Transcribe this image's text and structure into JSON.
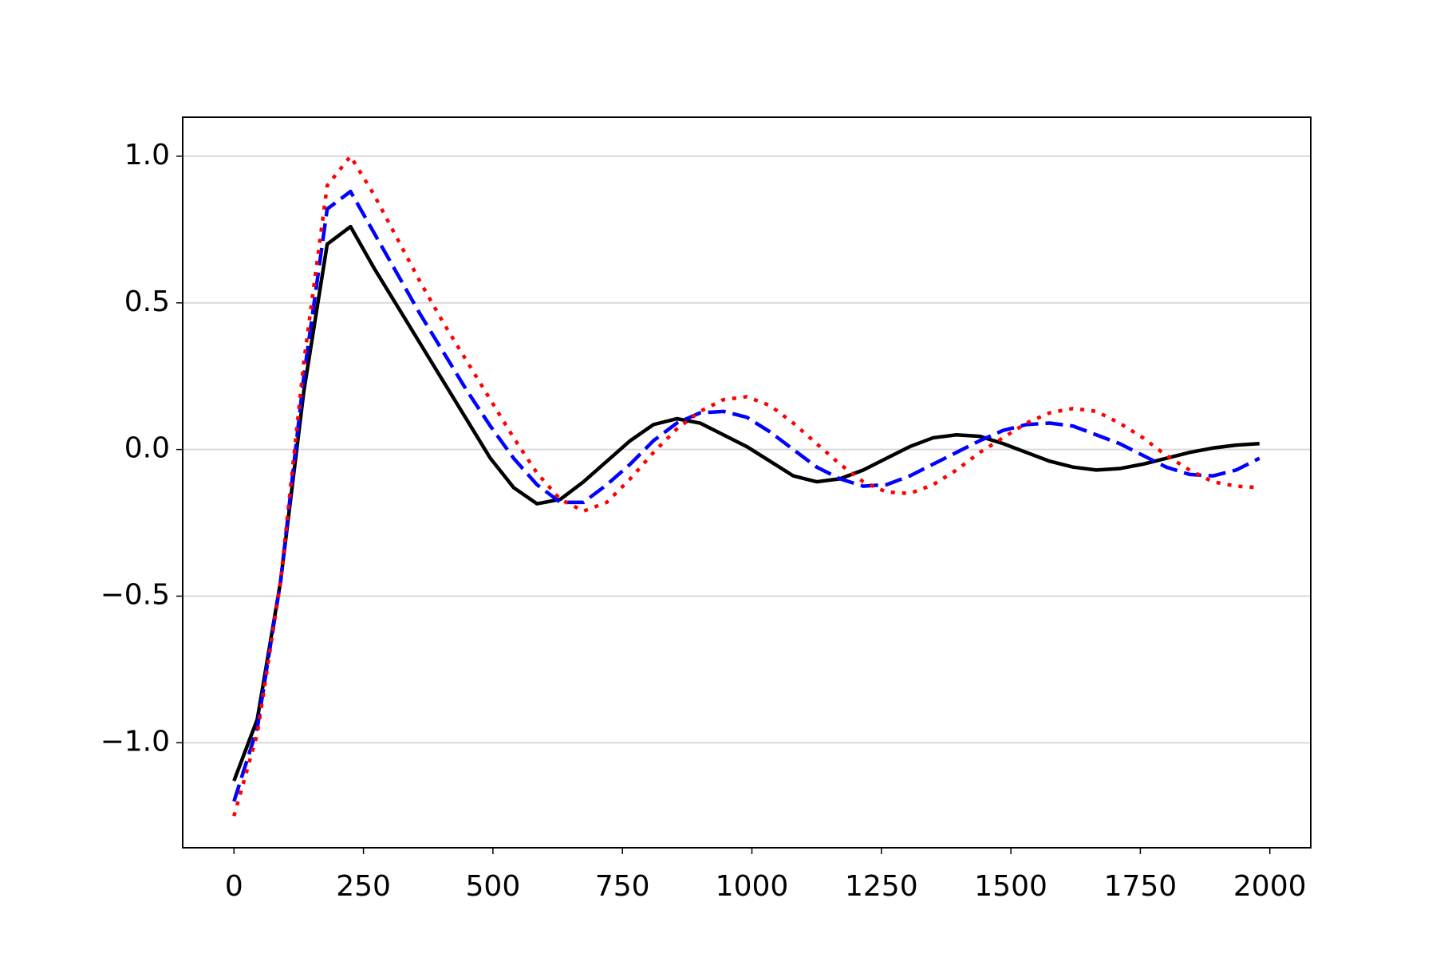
{
  "chart_data": {
    "type": "line",
    "x": [
      0,
      45,
      90,
      135,
      180,
      225,
      270,
      315,
      360,
      405,
      450,
      495,
      540,
      585,
      630,
      675,
      720,
      765,
      810,
      855,
      900,
      945,
      990,
      1035,
      1080,
      1125,
      1170,
      1215,
      1260,
      1305,
      1350,
      1395,
      1440,
      1485,
      1530,
      1575,
      1620,
      1665,
      1710,
      1755,
      1800,
      1845,
      1890,
      1935,
      1980
    ],
    "series": [
      {
        "color": "#000000",
        "linestyle": "solid",
        "values": [
          -1.13,
          -0.92,
          -0.45,
          0.2,
          0.7,
          0.76,
          0.62,
          0.49,
          0.36,
          0.23,
          0.1,
          -0.03,
          -0.13,
          -0.185,
          -0.17,
          -0.11,
          -0.04,
          0.03,
          0.085,
          0.105,
          0.09,
          0.05,
          0.01,
          -0.04,
          -0.09,
          -0.11,
          -0.1,
          -0.07,
          -0.03,
          0.01,
          0.04,
          0.05,
          0.045,
          0.02,
          -0.01,
          -0.04,
          -0.06,
          -0.07,
          -0.065,
          -0.05,
          -0.03,
          -0.01,
          0.005,
          0.015,
          0.02
        ]
      },
      {
        "color": "#0000ff",
        "linestyle": "dashed",
        "values": [
          -1.2,
          -0.95,
          -0.45,
          0.25,
          0.82,
          0.88,
          0.74,
          0.6,
          0.46,
          0.33,
          0.2,
          0.08,
          -0.03,
          -0.12,
          -0.18,
          -0.18,
          -0.12,
          -0.05,
          0.03,
          0.09,
          0.125,
          0.13,
          0.11,
          0.06,
          0.0,
          -0.06,
          -0.1,
          -0.125,
          -0.12,
          -0.09,
          -0.05,
          -0.01,
          0.03,
          0.065,
          0.085,
          0.09,
          0.08,
          0.05,
          0.02,
          -0.02,
          -0.06,
          -0.085,
          -0.09,
          -0.07,
          -0.03
        ]
      },
      {
        "color": "#ff0000",
        "linestyle": "dotted",
        "values": [
          -1.25,
          -0.97,
          -0.45,
          0.3,
          0.9,
          1.0,
          0.87,
          0.72,
          0.57,
          0.43,
          0.3,
          0.17,
          0.04,
          -0.08,
          -0.17,
          -0.21,
          -0.18,
          -0.1,
          -0.01,
          0.07,
          0.13,
          0.17,
          0.18,
          0.15,
          0.09,
          0.02,
          -0.05,
          -0.11,
          -0.145,
          -0.15,
          -0.12,
          -0.07,
          -0.01,
          0.04,
          0.09,
          0.125,
          0.14,
          0.13,
          0.09,
          0.04,
          -0.02,
          -0.07,
          -0.11,
          -0.125,
          -0.13
        ]
      }
    ],
    "xlim": [
      -99,
      2079
    ],
    "xticks": [
      0,
      250,
      500,
      750,
      1000,
      1250,
      1500,
      1750,
      2000
    ],
    "ylim": [
      -1.358,
      1.133
    ],
    "yticks": [
      {
        "value": -1.0,
        "label": "−1.0"
      },
      {
        "value": -0.5,
        "label": "−0.5"
      },
      {
        "value": 0.0,
        "label": "0.0"
      },
      0.5,
      {
        "value": 1.0,
        "label": "1.0"
      }
    ],
    "grid": "y"
  }
}
